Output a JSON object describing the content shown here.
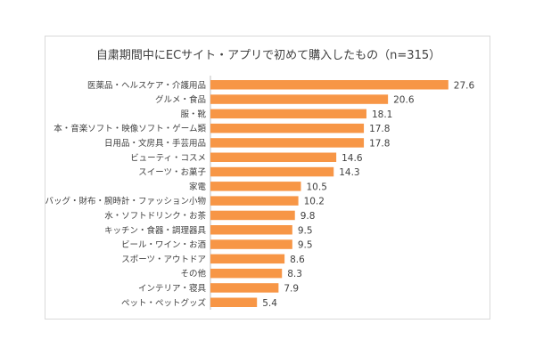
{
  "chart_data": {
    "type": "bar",
    "orientation": "horizontal",
    "title": "自粛期間中にECサイト・アプリで初めて購入したもの（n=315）",
    "categories": [
      "医薬品・ヘルスケア・介護用品",
      "グルメ・食品",
      "服・靴",
      "本・音楽ソフト・映像ソフト・ゲーム類",
      "日用品・文房具・手芸用品",
      "ビューティ・コスメ",
      "スイーツ・お菓子",
      "家電",
      "バッグ・財布・腕時計・ファッション小物",
      "水・ソフトドリンク・お茶",
      "キッチン・食器・調理器具",
      "ビール・ワイン・お酒",
      "スポーツ・アウトドア",
      "その他",
      "インテリア・寝具",
      "ペット・ペットグッズ"
    ],
    "values": [
      27.6,
      20.6,
      18.1,
      17.8,
      17.8,
      14.6,
      14.3,
      10.5,
      10.2,
      9.8,
      9.5,
      9.5,
      8.6,
      8.3,
      7.9,
      5.4
    ],
    "xlim": [
      0,
      30
    ],
    "bar_color": "#f79646",
    "grid": false,
    "legend": false
  }
}
